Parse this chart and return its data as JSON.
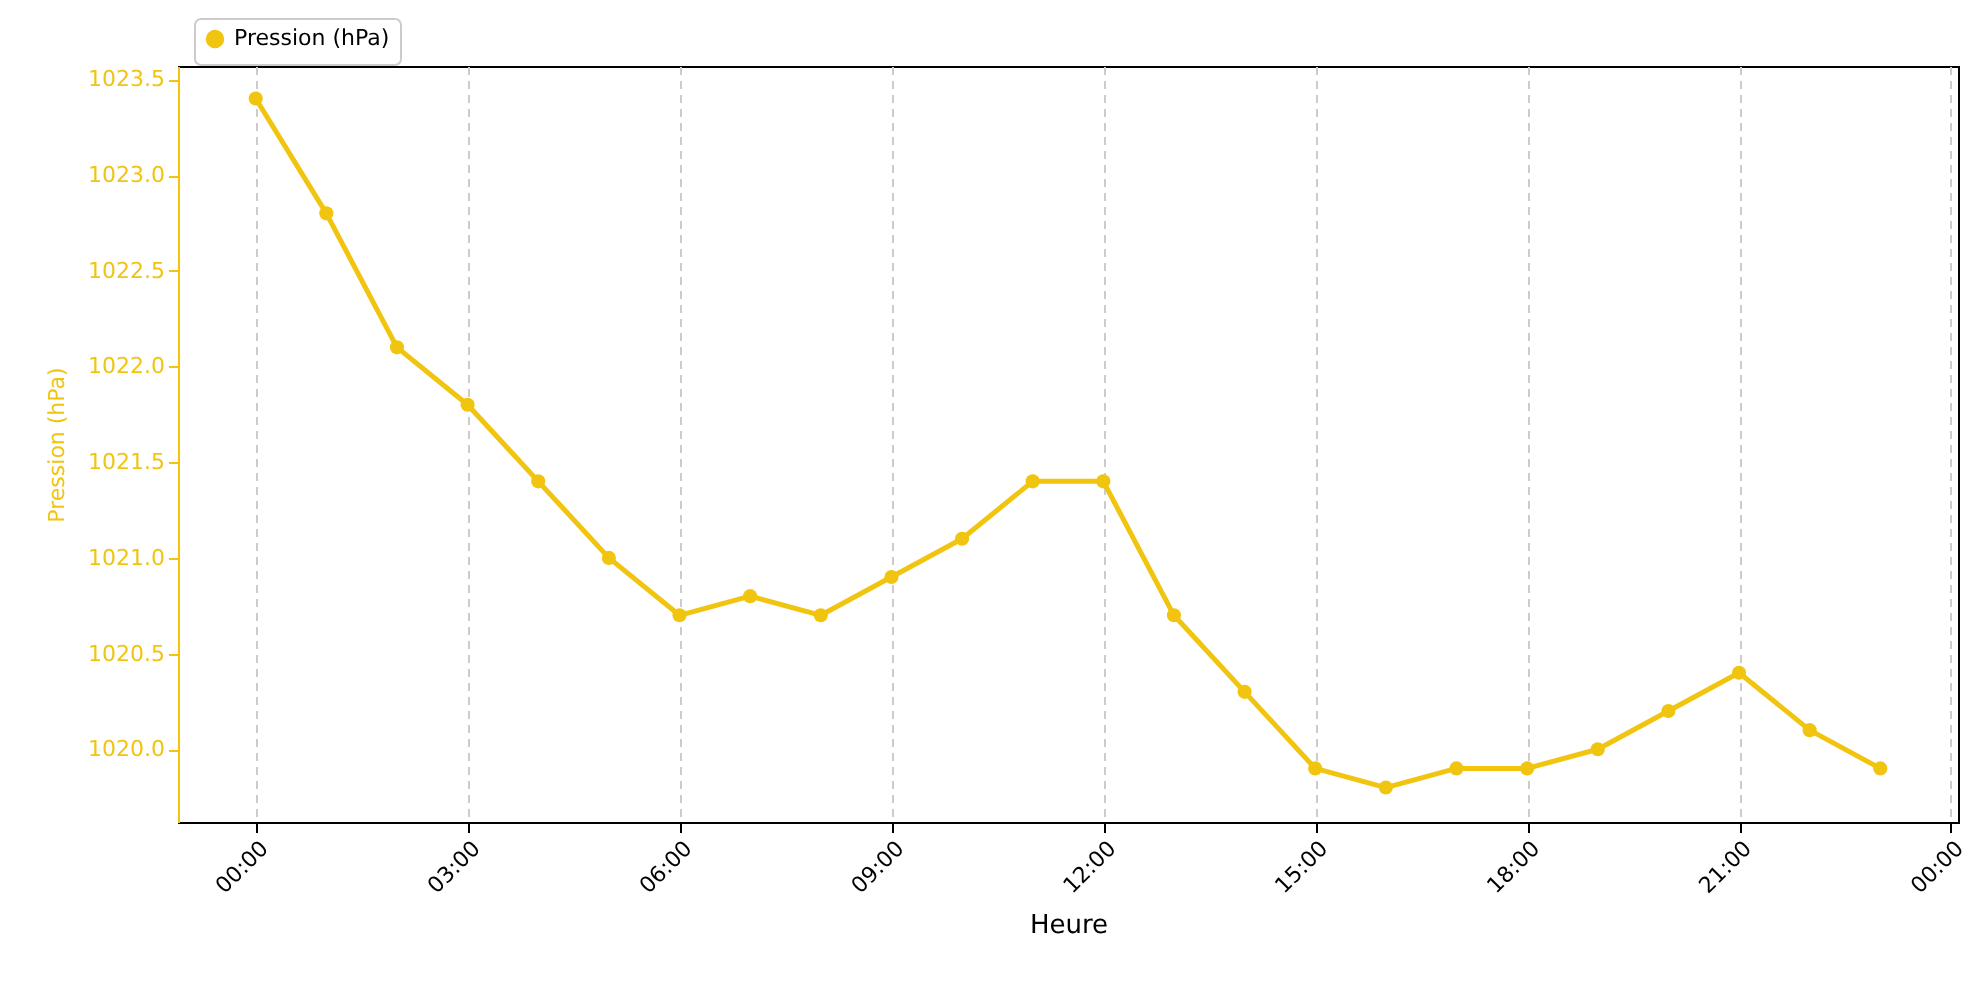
{
  "chart_data": {
    "type": "line",
    "xlabel": "Heure",
    "ylabel": "Pression (hPa)",
    "x": [
      0,
      1,
      2,
      3,
      4,
      5,
      6,
      7,
      8,
      9,
      10,
      11,
      12,
      13,
      14,
      15,
      16,
      17,
      18,
      19,
      20,
      21,
      22,
      23
    ],
    "series": [
      {
        "name": "Pression (hPa)",
        "color": "#f1c40f",
        "values": [
          1023.4,
          1022.8,
          1022.1,
          1021.8,
          1021.4,
          1021.0,
          1020.7,
          1020.8,
          1020.7,
          1020.9,
          1021.1,
          1021.4,
          1021.4,
          1020.7,
          1020.3,
          1019.9,
          1019.8,
          1019.9,
          1019.9,
          1020.0,
          1020.2,
          1020.4,
          1020.1,
          1019.9
        ]
      }
    ],
    "xlim": [
      -1.1,
      24.1
    ],
    "xticks": [
      {
        "value": 0,
        "label": "00:00"
      },
      {
        "value": 3,
        "label": "03:00"
      },
      {
        "value": 6,
        "label": "06:00"
      },
      {
        "value": 9,
        "label": "09:00"
      },
      {
        "value": 12,
        "label": "12:00"
      },
      {
        "value": 15,
        "label": "15:00"
      },
      {
        "value": 18,
        "label": "18:00"
      },
      {
        "value": 21,
        "label": "21:00"
      },
      {
        "value": 24,
        "label": "00:00"
      }
    ],
    "ylim": [
      1019.62,
      1023.57
    ],
    "yticks": [
      {
        "value": 1020,
        "label": "1020.0"
      },
      {
        "value": 1020.5,
        "label": "1020.5"
      },
      {
        "value": 1021,
        "label": "1021.0"
      },
      {
        "value": 1021.5,
        "label": "1021.5"
      },
      {
        "value": 1022,
        "label": "1022.0"
      },
      {
        "value": 1022.5,
        "label": "1022.5"
      },
      {
        "value": 1023,
        "label": "1023.0"
      },
      {
        "value": 1023.5,
        "label": "1023.5"
      }
    ],
    "grid": "x",
    "legend": "top left",
    "marker": "circle",
    "line_style": "solid"
  }
}
